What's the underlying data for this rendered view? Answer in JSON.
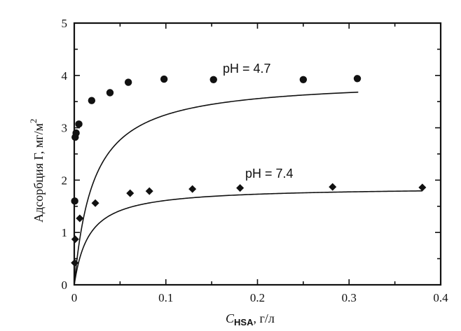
{
  "chart_data": {
    "type": "scatter",
    "xlabel": "C",
    "xlabel_subscript": "HSA",
    "xlabel_unit": ", г/л",
    "ylabel": "Адсорбция Г, мг/м",
    "ylabel_superscript": "2",
    "xlim": [
      0,
      0.4
    ],
    "ylim": [
      0,
      5
    ],
    "x_ticks": [
      "0",
      "0.1",
      "0.2",
      "0.3",
      "0.4"
    ],
    "y_ticks": [
      "0",
      "1",
      "2",
      "3",
      "4",
      "5"
    ],
    "grid": false,
    "series": [
      {
        "name": "pH = 4.7",
        "marker": "circle",
        "x": [
          0.0005,
          0.001,
          0.002,
          0.005,
          0.019,
          0.039,
          0.059,
          0.098,
          0.152,
          0.25,
          0.309
        ],
        "y": [
          1.6,
          2.82,
          2.9,
          3.07,
          3.52,
          3.67,
          3.87,
          3.93,
          3.92,
          3.92,
          3.94
        ],
        "fit": {
          "a": 3.93,
          "k": 0.021,
          "x_range": [
            0,
            0.31
          ]
        }
      },
      {
        "name": "pH = 7.4",
        "marker": "diamond",
        "x": [
          0.0005,
          0.001,
          0.006,
          0.023,
          0.061,
          0.082,
          0.129,
          0.181,
          0.282,
          0.38
        ],
        "y": [
          0.42,
          0.87,
          1.27,
          1.56,
          1.75,
          1.79,
          1.83,
          1.85,
          1.87,
          1.86
        ],
        "fit": {
          "a": 1.87,
          "k": 0.016,
          "x_range": [
            0,
            0.38
          ]
        }
      }
    ]
  }
}
